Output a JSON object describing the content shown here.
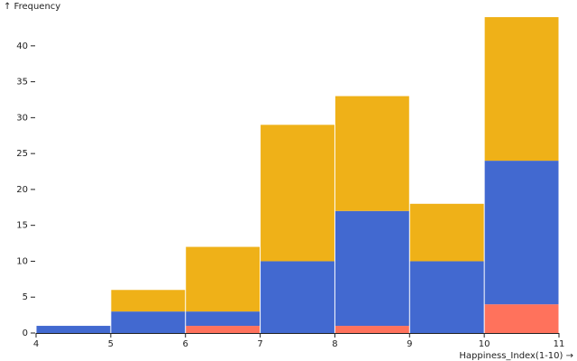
{
  "chart_data": {
    "type": "histogram",
    "x_label": "Happiness_Index(1-10) →",
    "y_label": "↑ Frequency",
    "bins": [
      4,
      5,
      6,
      7,
      8,
      9,
      10,
      11
    ],
    "series": [
      {
        "color": "#ff725c",
        "values": [
          0,
          0,
          1,
          0,
          1,
          0,
          4
        ]
      },
      {
        "color": "#4269d0",
        "values": [
          1,
          3,
          2,
          10,
          16,
          10,
          20
        ]
      },
      {
        "color": "#efb118",
        "values": [
          0,
          3,
          9,
          19,
          16,
          8,
          20
        ]
      }
    ],
    "xlim": [
      4,
      11
    ],
    "xticks": [
      4,
      5,
      6,
      7,
      8,
      9,
      10,
      11
    ],
    "ylim": [
      0,
      44
    ],
    "yticks": [
      0,
      5,
      10,
      15,
      20,
      25,
      30,
      35,
      40
    ],
    "stacked": true
  }
}
